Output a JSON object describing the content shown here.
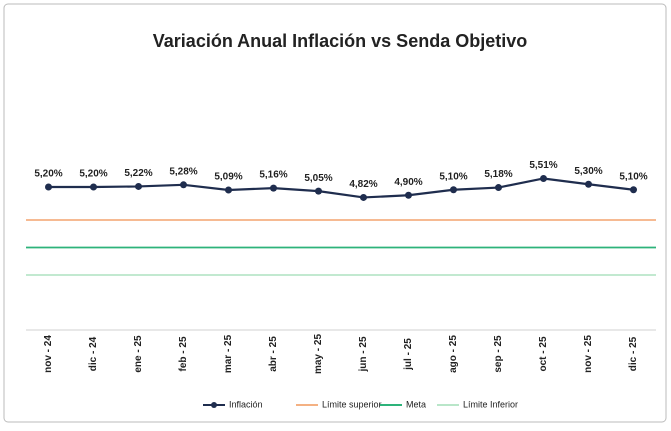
{
  "chart_data": {
    "type": "line",
    "title": "Variación Anual Inflación vs Senda Objetivo",
    "categories": [
      "nov - 24",
      "dic - 24",
      "ene - 25",
      "feb - 25",
      "mar - 25",
      "abr - 25",
      "may - 25",
      "jun - 25",
      "jul - 25",
      "ago - 25",
      "sep - 25",
      "oct - 25",
      "nov - 25",
      "dic - 25"
    ],
    "ylim": [
      0,
      10
    ],
    "series": [
      {
        "name": "Inflación",
        "color": "#1f2d4e",
        "markers": true,
        "values": [
          5.2,
          5.2,
          5.22,
          5.28,
          5.09,
          5.16,
          5.05,
          4.82,
          4.9,
          5.1,
          5.18,
          5.51,
          5.3,
          5.1
        ],
        "value_labels": [
          "5,20%",
          "5,20%",
          "5,22%",
          "5,28%",
          "5,09%",
          "5,16%",
          "5,05%",
          "4,82%",
          "4,90%",
          "5,10%",
          "5,18%",
          "5,51%",
          "5,30%",
          "5,10%"
        ]
      },
      {
        "name": "Límite superior",
        "color": "#f4b183",
        "markers": false,
        "values": [
          4,
          4,
          4,
          4,
          4,
          4,
          4,
          4,
          4,
          4,
          4,
          4,
          4,
          4
        ]
      },
      {
        "name": "Meta",
        "color": "#2db37a",
        "markers": false,
        "values": [
          3,
          3,
          3,
          3,
          3,
          3,
          3,
          3,
          3,
          3,
          3,
          3,
          3,
          3
        ]
      },
      {
        "name": "Límite Inferior",
        "color": "#b9e6c9",
        "markers": false,
        "values": [
          2,
          2,
          2,
          2,
          2,
          2,
          2,
          2,
          2,
          2,
          2,
          2,
          2,
          2
        ]
      }
    ]
  }
}
